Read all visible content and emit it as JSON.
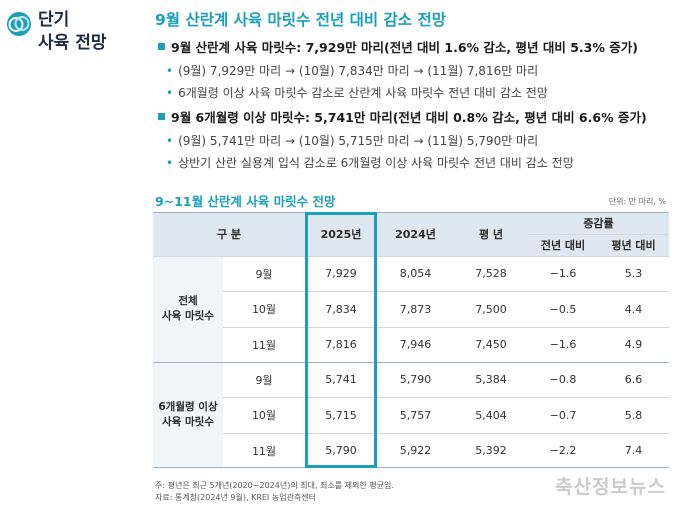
{
  "sidebar": {
    "title_line1": "단기",
    "title_line2": "사육 전망"
  },
  "headline": "9월 산란계 사육 마릿수 전년 대비 감소 전망",
  "bullets": [
    {
      "kind": "main",
      "text": "9월 산란계 사육 마릿수: 7,929만 마리(전년 대비 1.6% 감소, 평년 대비 5.3% 증가)"
    },
    {
      "kind": "sub",
      "text": "(9월) 7,929만 마리 → (10월) 7,834만 마리 → (11월) 7,816만 마리"
    },
    {
      "kind": "sub",
      "text": "6개월령 이상 사육 마릿수 감소로 산란계 사육 마릿수 전년 대비 감소 전망"
    },
    {
      "kind": "main",
      "text": "9월 6개월령 이상 마릿수: 5,741만 마리(전년 대비 0.8% 감소, 평년 대비 6.6% 증가)"
    },
    {
      "kind": "sub",
      "text": "(9월) 5,741만 마리 → (10월) 5,715만 마리 → (11월) 5,790만 마리"
    },
    {
      "kind": "sub",
      "text": "상반기 산란 실용계 입식 감소로 6개월령 이상 사육 마릿수 전년 대비 감소 전망"
    }
  ],
  "table": {
    "title": "9~11월 산란계 사육 마릿수 전망",
    "unit": "단위: 만 마리, %",
    "headers": {
      "category": "구 분",
      "y2025": "2025년",
      "y2024": "2024년",
      "avg": "평 년",
      "change": "증감률",
      "vs_prev": "전년 대비",
      "vs_avg": "평년 대비"
    },
    "groups": [
      {
        "label_line1": "전체",
        "label_line2": "사육 마릿수",
        "rows": [
          {
            "month": "9월",
            "y2025": "7,929",
            "y2024": "8,054",
            "avg": "7,528",
            "vs_prev": "−1.6",
            "vs_avg": "5.3"
          },
          {
            "month": "10월",
            "y2025": "7,834",
            "y2024": "7,873",
            "avg": "7,500",
            "vs_prev": "−0.5",
            "vs_avg": "4.4"
          },
          {
            "month": "11월",
            "y2025": "7,816",
            "y2024": "7,946",
            "avg": "7,450",
            "vs_prev": "−1.6",
            "vs_avg": "4.9"
          }
        ]
      },
      {
        "label_line1": "6개월령 이상",
        "label_line2": "사육 마릿수",
        "rows": [
          {
            "month": "9월",
            "y2025": "5,741",
            "y2024": "5,790",
            "avg": "5,384",
            "vs_prev": "−0.8",
            "vs_avg": "6.6"
          },
          {
            "month": "10월",
            "y2025": "5,715",
            "y2024": "5,757",
            "avg": "5,404",
            "vs_prev": "−0.7",
            "vs_avg": "5.8"
          },
          {
            "month": "11월",
            "y2025": "5,790",
            "y2024": "5,922",
            "avg": "5,392",
            "vs_prev": "−2.2",
            "vs_avg": "7.4"
          }
        ]
      }
    ]
  },
  "notes": {
    "line1": "주: 평년은 최근 5개년(2020~2024년)의 최대, 최소를 제외한 평균임.",
    "line2": "자료: 통계청(2024년 9월), KREI 농업관측센터"
  },
  "watermark": "축산정보뉴스",
  "colors": {
    "accent": "#1aa0b8",
    "header_bg": "#dfe7f1",
    "group_bg": "#f1f4f8"
  }
}
